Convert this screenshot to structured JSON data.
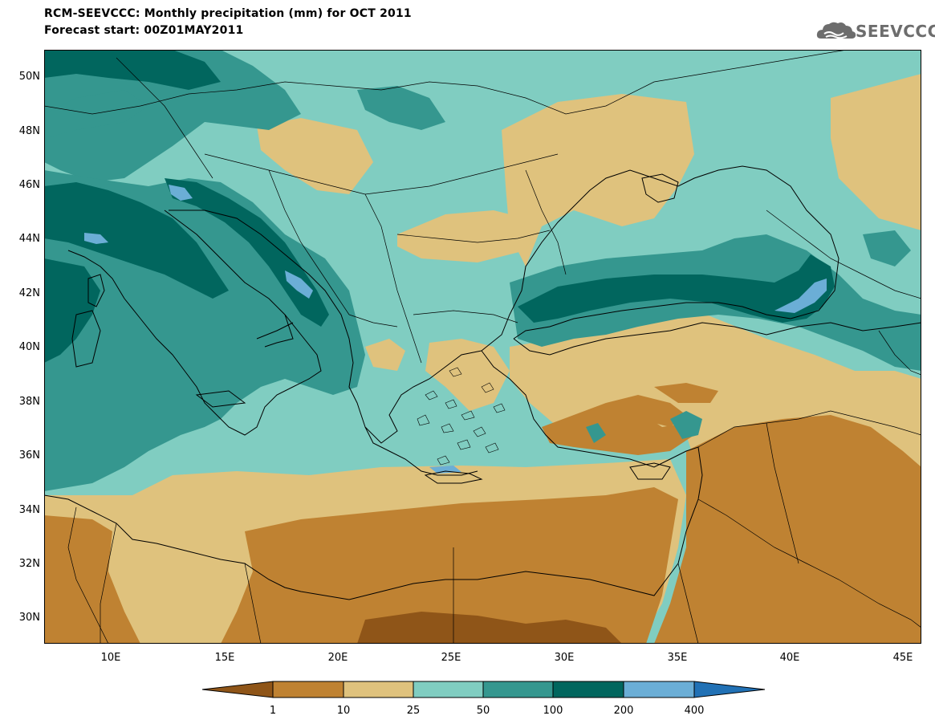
{
  "header": {
    "title": "RCM-SEEVCCC: Monthly precipitation (mm) for OCT 2011",
    "subtitle": "Forecast start: 00Z01MAY2011",
    "logo_text": "SEEVCCC"
  },
  "map": {
    "lat_labels": [
      "50N",
      "48N",
      "46N",
      "44N",
      "42N",
      "40N",
      "38N",
      "36N",
      "34N",
      "32N",
      "30N"
    ],
    "lon_labels": [
      "10E",
      "15E",
      "20E",
      "25E",
      "30E",
      "35E",
      "40E",
      "45E"
    ],
    "colors": {
      "lt1": "#8f5518",
      "c1_10": "#bf8232",
      "c10_25": "#dfc27d",
      "c25_50": "#80cdc1",
      "c50_100": "#35978f",
      "c100_200": "#01665e",
      "c200_400": "#6baed6",
      "gt400": "#2171b5"
    }
  },
  "legend": {
    "labels": [
      "1",
      "10",
      "25",
      "50",
      "100",
      "200",
      "400"
    ]
  }
}
